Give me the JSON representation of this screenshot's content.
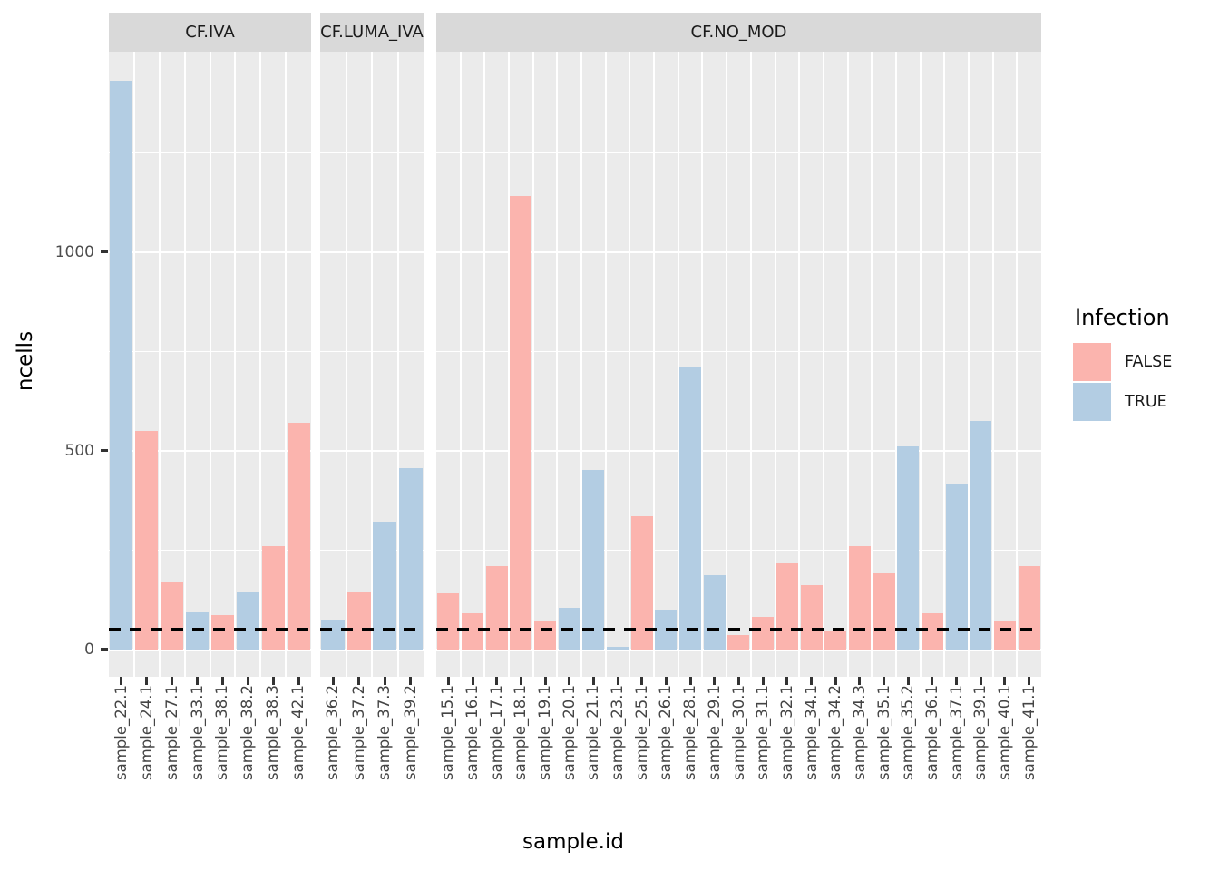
{
  "chart_data": {
    "type": "bar",
    "title": "",
    "xlabel": "sample.id",
    "ylabel": "ncells",
    "y_ticks": [
      0,
      500,
      1000
    ],
    "y_minor_ticks": [
      250,
      750,
      1250
    ],
    "ylim": [
      -70,
      1500
    ],
    "grid": true,
    "panel_background": "#ebebeb",
    "strip_background": "#d9d9d9",
    "hline": {
      "value": 50,
      "style": "dashed",
      "color": "#000000"
    },
    "legend": {
      "title": "Infection",
      "position": "right",
      "items": [
        {
          "label": "FALSE",
          "color": "#FBB4AE"
        },
        {
          "label": "TRUE",
          "color": "#B3CDE3"
        }
      ]
    },
    "facets": [
      {
        "label": "CF.IVA",
        "label_clipped": false,
        "bars": [
          {
            "id": "sample_22.1",
            "infection": "TRUE",
            "ncells": 1430
          },
          {
            "id": "sample_24.1",
            "infection": "FALSE",
            "ncells": 550
          },
          {
            "id": "sample_27.1",
            "infection": "FALSE",
            "ncells": 170
          },
          {
            "id": "sample_33.1",
            "infection": "TRUE",
            "ncells": 95
          },
          {
            "id": "sample_38.1",
            "infection": "FALSE",
            "ncells": 85
          },
          {
            "id": "sample_38.2",
            "infection": "TRUE",
            "ncells": 145
          },
          {
            "id": "sample_38.3",
            "infection": "FALSE",
            "ncells": 260
          },
          {
            "id": "sample_42.1",
            "infection": "FALSE",
            "ncells": 570
          }
        ]
      },
      {
        "label": "CF.LUMA_IVA",
        "label_clipped": true,
        "bars": [
          {
            "id": "sample_36.2",
            "infection": "TRUE",
            "ncells": 75
          },
          {
            "id": "sample_37.2",
            "infection": "FALSE",
            "ncells": 145
          },
          {
            "id": "sample_37.3",
            "infection": "TRUE",
            "ncells": 320
          },
          {
            "id": "sample_39.2",
            "infection": "TRUE",
            "ncells": 455
          }
        ]
      },
      {
        "label": "CF.NO_MOD",
        "label_clipped": false,
        "bars": [
          {
            "id": "sample_15.1",
            "infection": "FALSE",
            "ncells": 140
          },
          {
            "id": "sample_16.1",
            "infection": "FALSE",
            "ncells": 90
          },
          {
            "id": "sample_17.1",
            "infection": "FALSE",
            "ncells": 210
          },
          {
            "id": "sample_18.1",
            "infection": "FALSE",
            "ncells": 1140
          },
          {
            "id": "sample_19.1",
            "infection": "FALSE",
            "ncells": 70
          },
          {
            "id": "sample_20.1",
            "infection": "TRUE",
            "ncells": 105
          },
          {
            "id": "sample_21.1",
            "infection": "TRUE",
            "ncells": 450
          },
          {
            "id": "sample_23.1",
            "infection": "TRUE",
            "ncells": 5
          },
          {
            "id": "sample_25.1",
            "infection": "FALSE",
            "ncells": 335
          },
          {
            "id": "sample_26.1",
            "infection": "TRUE",
            "ncells": 100
          },
          {
            "id": "sample_28.1",
            "infection": "TRUE",
            "ncells": 710
          },
          {
            "id": "sample_29.1",
            "infection": "TRUE",
            "ncells": 185
          },
          {
            "id": "sample_30.1",
            "infection": "FALSE",
            "ncells": 35
          },
          {
            "id": "sample_31.1",
            "infection": "FALSE",
            "ncells": 80
          },
          {
            "id": "sample_32.1",
            "infection": "FALSE",
            "ncells": 215
          },
          {
            "id": "sample_34.1",
            "infection": "FALSE",
            "ncells": 160
          },
          {
            "id": "sample_34.2",
            "infection": "FALSE",
            "ncells": 45
          },
          {
            "id": "sample_34.3",
            "infection": "FALSE",
            "ncells": 260
          },
          {
            "id": "sample_35.1",
            "infection": "FALSE",
            "ncells": 190
          },
          {
            "id": "sample_35.2",
            "infection": "TRUE",
            "ncells": 510
          },
          {
            "id": "sample_36.1",
            "infection": "FALSE",
            "ncells": 90
          },
          {
            "id": "sample_37.1",
            "infection": "TRUE",
            "ncells": 415
          },
          {
            "id": "sample_39.1",
            "infection": "TRUE",
            "ncells": 575
          },
          {
            "id": "sample_40.1",
            "infection": "FALSE",
            "ncells": 70
          },
          {
            "id": "sample_41.1",
            "infection": "FALSE",
            "ncells": 210
          }
        ]
      }
    ]
  }
}
